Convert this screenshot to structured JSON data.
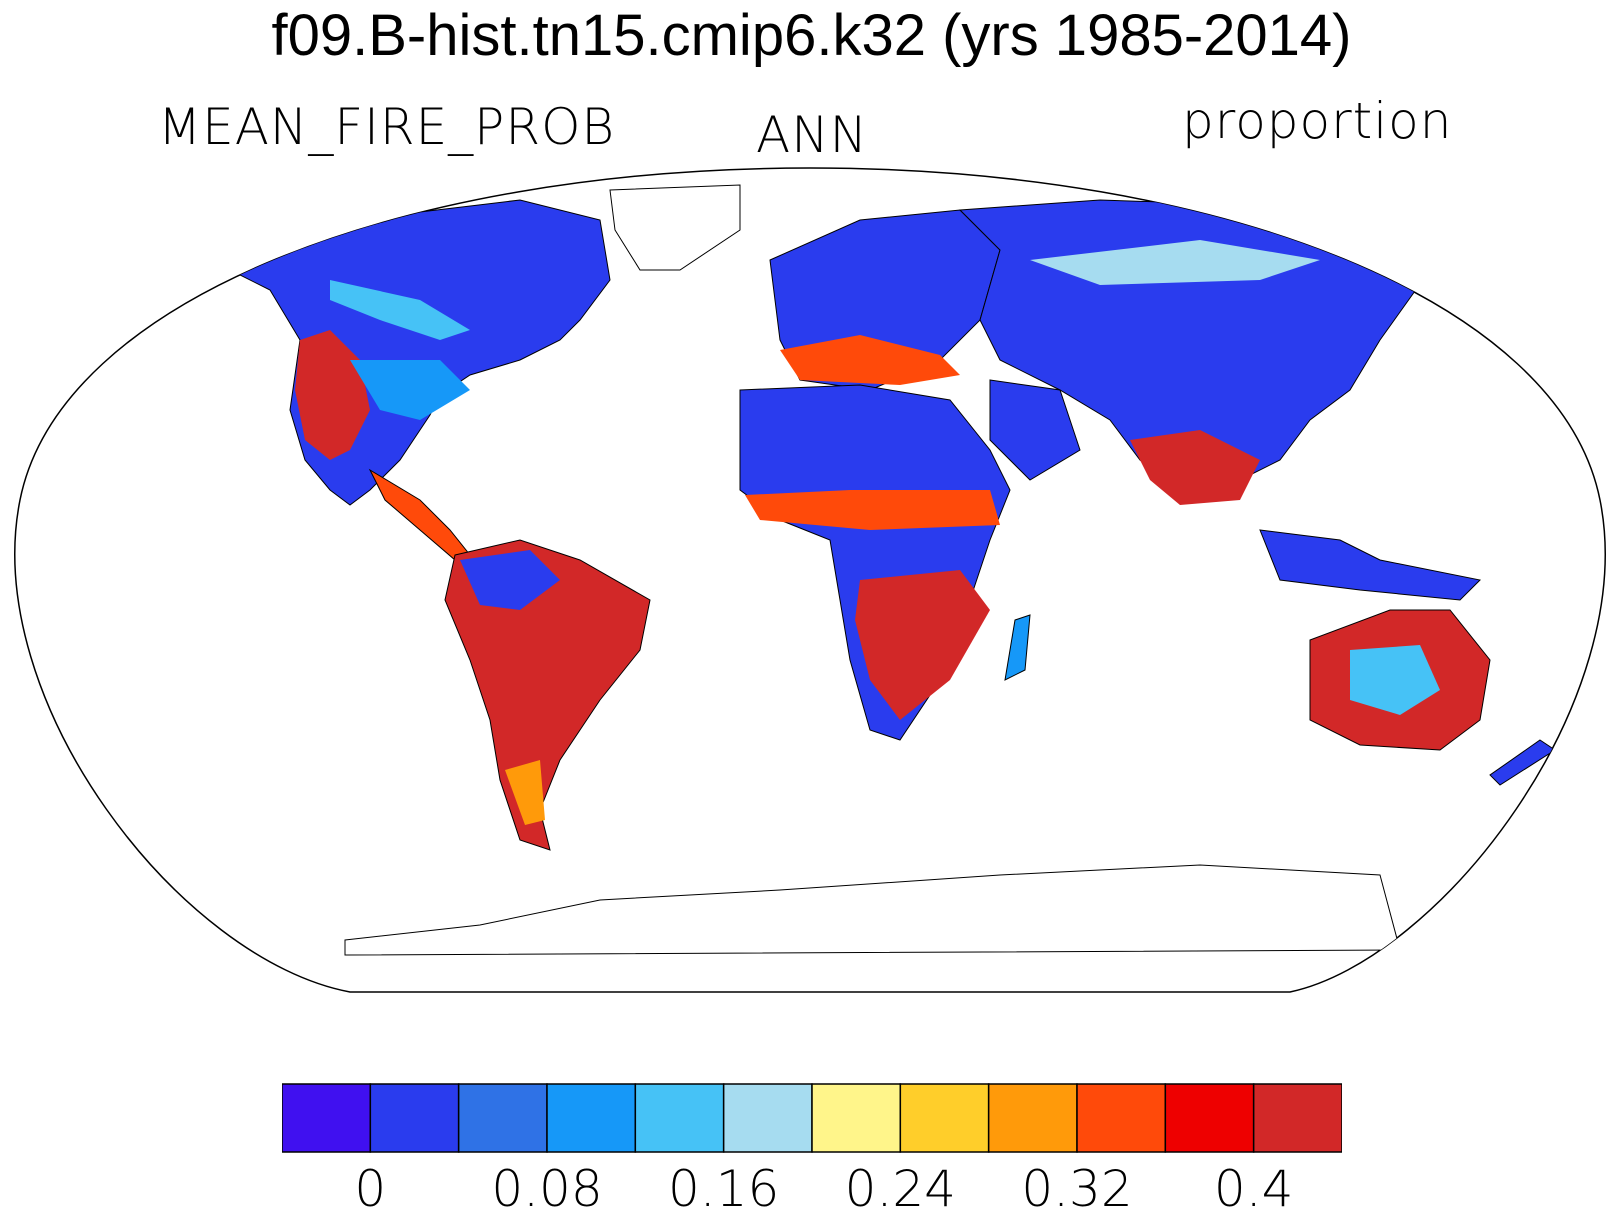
{
  "title": "f09.B-hist.tn15.cmip6.k32 (yrs 1985-2014)",
  "subtitles": {
    "left": "MEAN_FIRE_PROB",
    "center": "ANN",
    "right": "proportion"
  },
  "colorbar": {
    "colors": [
      "#4010f0",
      "#2a3cee",
      "#2f72e6",
      "#1698f8",
      "#46c2f6",
      "#a6dcf0",
      "#fff58a",
      "#ffce2a",
      "#ff9a0a",
      "#ff4a0a",
      "#ee0000",
      "#d22828"
    ],
    "tick_labels": [
      "0",
      "0.08",
      "0.16",
      "0.24",
      "0.32",
      "0.4"
    ]
  },
  "legend_values": {
    "levels": [
      0,
      0.04,
      0.08,
      0.12,
      0.16,
      0.2,
      0.24,
      0.28,
      0.32,
      0.36,
      0.4,
      0.44
    ],
    "units": "proportion"
  }
}
